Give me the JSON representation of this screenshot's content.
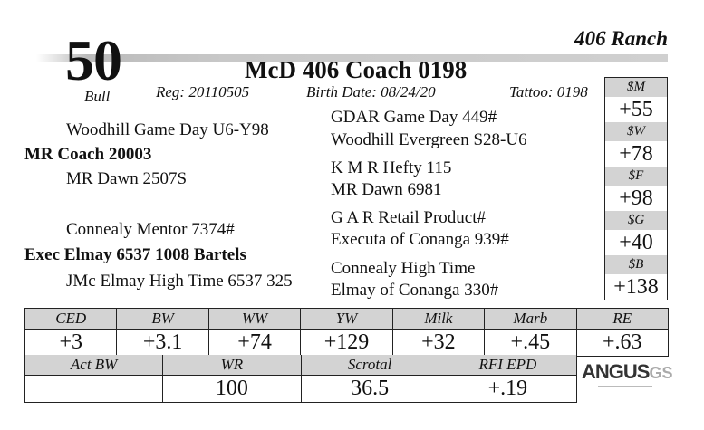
{
  "lot": {
    "number": "50",
    "type": "Bull",
    "ranch": "406 Ranch",
    "name": "McD 406 Coach 0198",
    "reg": "Reg: 20110505",
    "birth_date": "Birth Date:  08/24/20",
    "tattoo": "Tattoo: 0198"
  },
  "pedigree": {
    "sire": "MR Coach 20003",
    "sire_sire": "Woodhill Game Day U6-Y98",
    "sire_dam": "MR Dawn 2507S",
    "dam": "Exec Elmay 6537 1008 Bartels",
    "dam_sire": "Connealy Mentor 7374#",
    "dam_dam": "JMc Elmay High Time 6537 325",
    "ggp": [
      "GDAR Game Day 449#",
      "Woodhill Evergreen S28-U6",
      "K M R Hefty 115",
      "MR Dawn 6981",
      "G A R Retail Product#",
      "Executa of Conanga 939#",
      "Connealy High Time",
      "Elmay of Conanga 330#"
    ]
  },
  "dollar_values": [
    {
      "label": "$M",
      "value": "+55"
    },
    {
      "label": "$W",
      "value": "+78"
    },
    {
      "label": "$F",
      "value": "+98"
    },
    {
      "label": "$G",
      "value": "+40"
    },
    {
      "label": "$B",
      "value": "+138"
    }
  ],
  "epd": [
    {
      "label": "CED",
      "value": "+3"
    },
    {
      "label": "BW",
      "value": "+3.1"
    },
    {
      "label": "WW",
      "value": "+74"
    },
    {
      "label": "YW",
      "value": "+129"
    },
    {
      "label": "Milk",
      "value": "+32"
    },
    {
      "label": "Marb",
      "value": "+.45"
    },
    {
      "label": "RE",
      "value": "+.63"
    }
  ],
  "actual": [
    {
      "label": "Act BW",
      "value": ""
    },
    {
      "label": "WR",
      "value": "100"
    },
    {
      "label": "Scrotal",
      "value": "36.5"
    },
    {
      "label": "RFI EPD",
      "value": "+.19"
    }
  ],
  "logo": {
    "text": "ANGUS",
    "suffix": "GS"
  }
}
